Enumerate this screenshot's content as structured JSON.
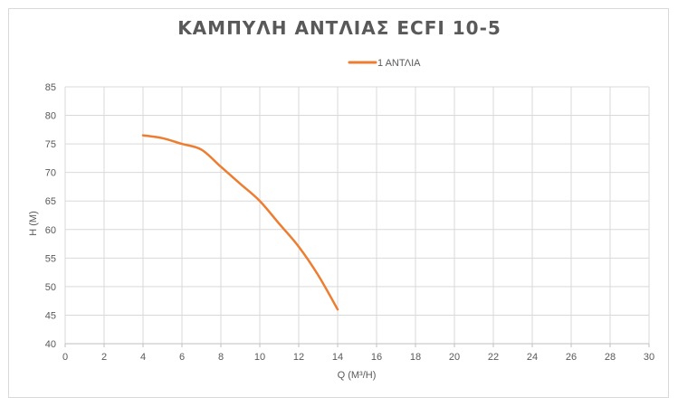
{
  "chart_data": {
    "type": "line",
    "title": "ΚΑΜΠΥΛΗ ΑΝΤΛΙΑΣ ECFI 10-5",
    "xlabel": "Q (M³/H)",
    "ylabel": "H (M)",
    "xlim": [
      0,
      30
    ],
    "ylim": [
      40,
      85
    ],
    "x_ticks": [
      0,
      2,
      4,
      6,
      8,
      10,
      12,
      14,
      16,
      18,
      20,
      22,
      24,
      26,
      28,
      30
    ],
    "y_ticks": [
      40,
      45,
      50,
      55,
      60,
      65,
      70,
      75,
      80,
      85
    ],
    "grid": true,
    "legend_position": "top",
    "series": [
      {
        "name": "1 ΑΝΤΛΙΑ",
        "color": "#ed7d31",
        "x": [
          4,
          5,
          6,
          7,
          8,
          9,
          10,
          11,
          12,
          13,
          14
        ],
        "y": [
          76.5,
          76,
          75,
          74,
          71,
          68,
          65,
          61,
          57,
          52,
          46
        ]
      }
    ]
  }
}
